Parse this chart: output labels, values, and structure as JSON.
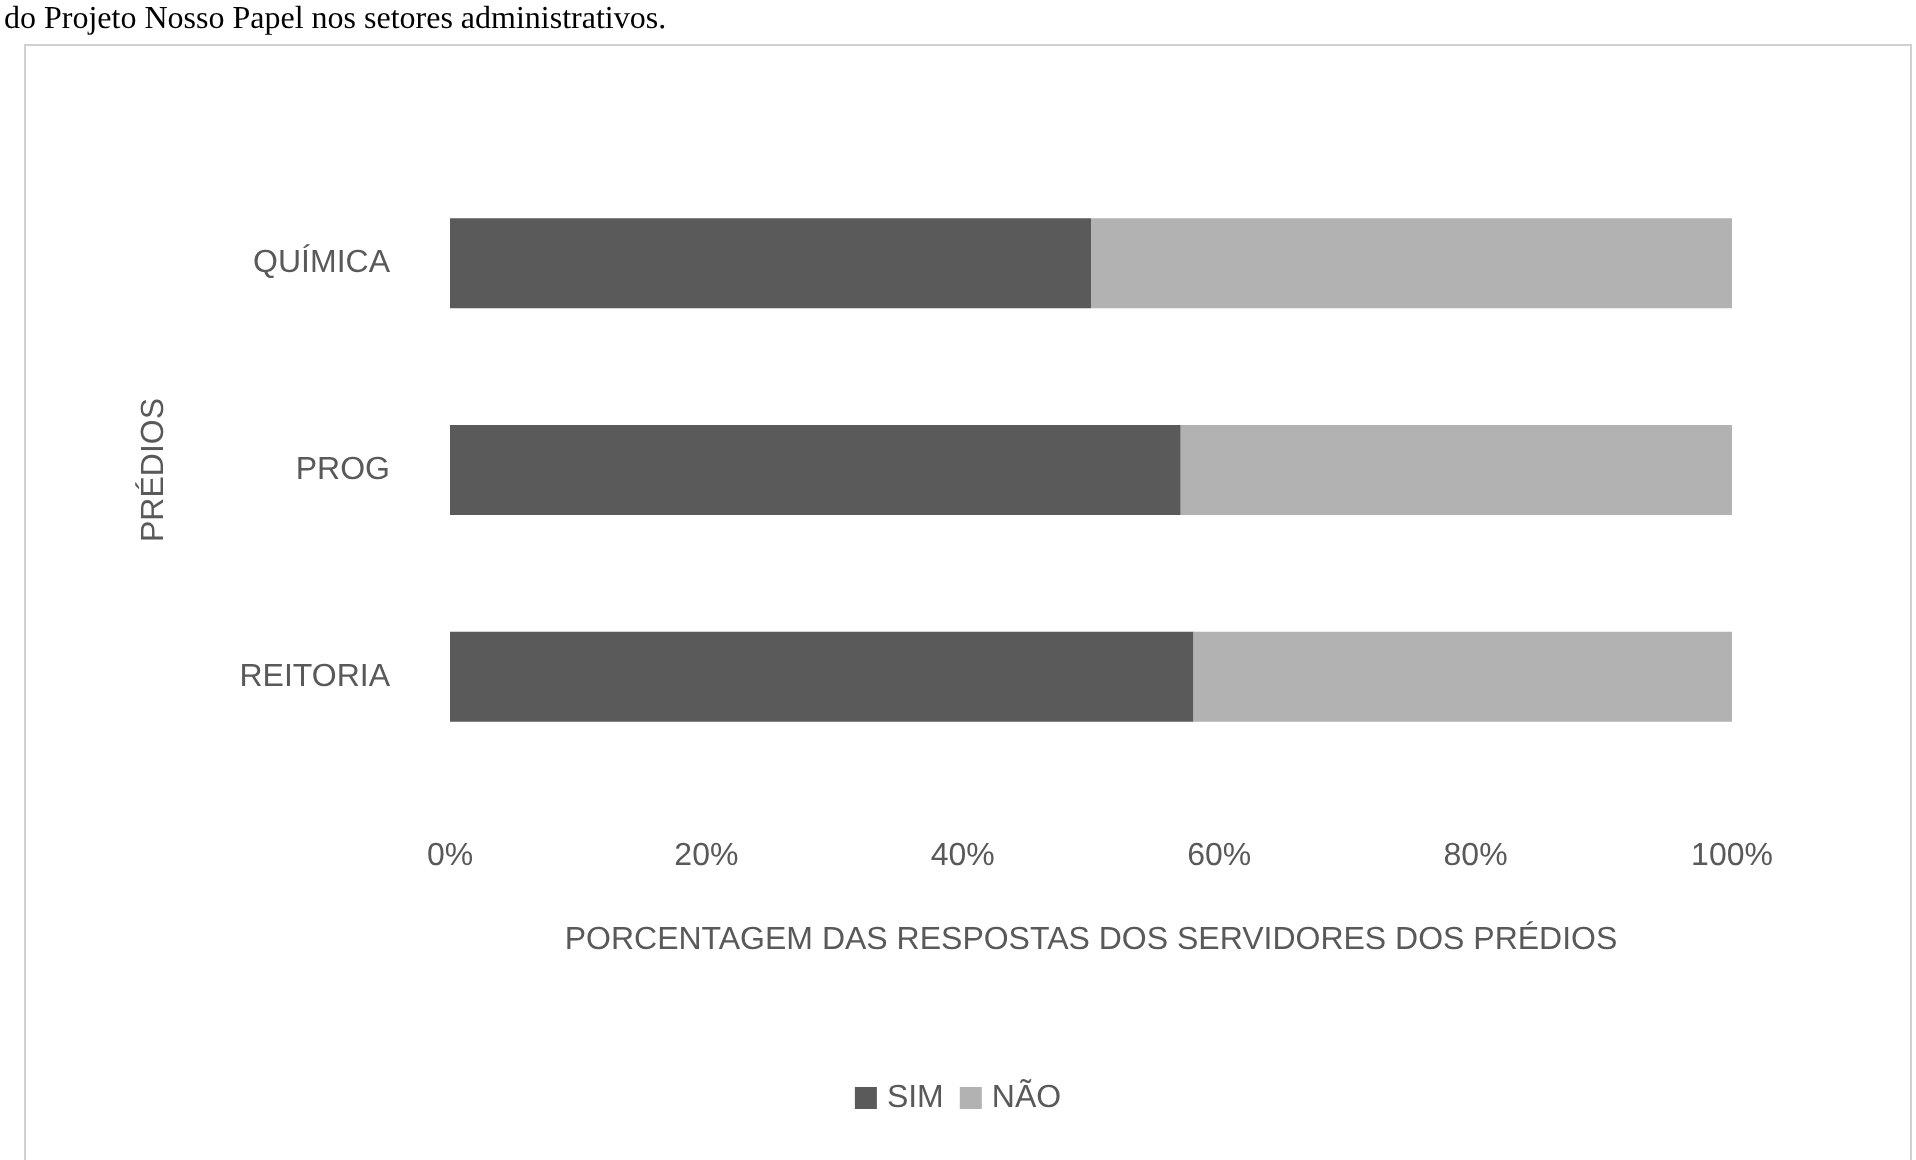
{
  "chart_data": {
    "type": "bar",
    "orientation": "horizontal",
    "stacked": true,
    "annotations": [
      "do Projeto Nosso Papel nos setores administrativos."
    ],
    "xlabel": "PORCENTAGEM DAS RESPOSTAS DOS SERVIDORES DOS PRÉDIOS",
    "ylabel": "PRÉDIOS",
    "categories": [
      "QUÍMICA",
      "PROG",
      "REITORIA"
    ],
    "series": [
      {
        "name": "SIM",
        "color": "#5a5a5a",
        "values": [
          50,
          57,
          58
        ]
      },
      {
        "name": "NÃO",
        "color": "#b2b2b2",
        "values": [
          50,
          43,
          42
        ]
      }
    ],
    "xlim": [
      0,
      100
    ],
    "xticks": [
      {
        "value": 0,
        "label": "0%"
      },
      {
        "value": 20,
        "label": "20%"
      },
      {
        "value": 40,
        "label": "40%"
      },
      {
        "value": 60,
        "label": "60%"
      },
      {
        "value": 80,
        "label": "80%"
      },
      {
        "value": 100,
        "label": "100%"
      }
    ],
    "grid": false,
    "legend": "bottom"
  }
}
